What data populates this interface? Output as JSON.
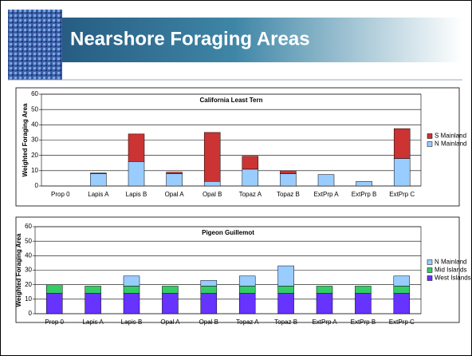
{
  "slide": {
    "title": "Nearshore Foraging Areas"
  },
  "chart_data": [
    {
      "type": "stacked-bar",
      "title": "California Least Tern",
      "y_label": "Weighted Foraging Area",
      "categories": [
        "Prop 0",
        "Lapis A",
        "Lapis B",
        "Opal A",
        "Opal B",
        "Topaz A",
        "Topaz B",
        "ExtPrp A",
        "ExtPrp B",
        "ExtPrp C"
      ],
      "series": [
        {
          "name": "N Mainland",
          "color": "#99ccff",
          "values": [
            0,
            8,
            16,
            8,
            3,
            11,
            8,
            7.5,
            3,
            18
          ]
        },
        {
          "name": "S Mainland",
          "color": "#cc3333",
          "values": [
            0,
            0.5,
            18,
            1,
            32,
            8.5,
            2,
            0,
            0,
            19.5
          ]
        }
      ],
      "ylim": [
        0,
        60
      ],
      "yticks": [
        0,
        10,
        20,
        30,
        40,
        50,
        60
      ],
      "grid": true,
      "legend": "right"
    },
    {
      "type": "stacked-bar",
      "title": "Pigeon Guillemot",
      "y_label": "Weighted Foraging Area",
      "categories": [
        "Prop 0",
        "Lapis A",
        "Lapis B",
        "Opal A",
        "Opal B",
        "Topaz A",
        "Topaz B",
        "ExtPrp A",
        "ExtPrp B",
        "ExtPrp C"
      ],
      "series": [
        {
          "name": "West Islands",
          "color": "#6633ff",
          "values": [
            14,
            14,
            14,
            14,
            14,
            14,
            14,
            14,
            14,
            14
          ]
        },
        {
          "name": "Mid Islands",
          "color": "#33cc66",
          "values": [
            6,
            5,
            5,
            5,
            5,
            5,
            5,
            5,
            5,
            5
          ]
        },
        {
          "name": "N Mainland",
          "color": "#99ccff",
          "values": [
            0,
            0,
            7,
            0,
            4,
            7,
            14,
            0,
            0,
            7
          ]
        }
      ],
      "ylim": [
        0,
        60
      ],
      "yticks": [
        0,
        10,
        20,
        30,
        40,
        50,
        60
      ],
      "grid": true,
      "legend": "right"
    }
  ]
}
